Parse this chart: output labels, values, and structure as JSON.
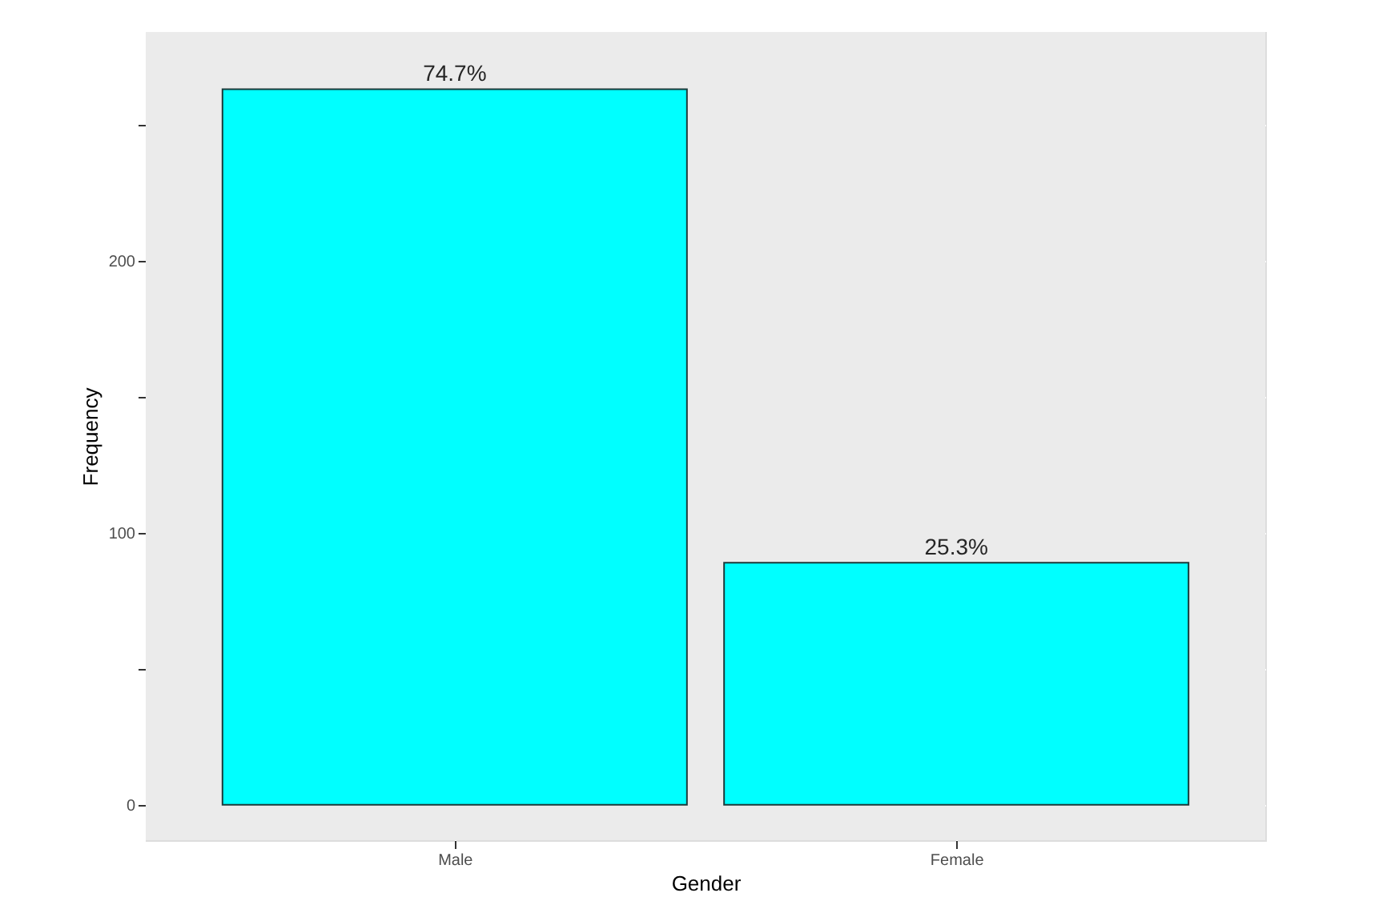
{
  "chart_data": {
    "type": "bar",
    "xlabel": "Gender",
    "ylabel": "Frequency",
    "categories": [
      "Male",
      "Female"
    ],
    "series": [
      {
        "color": "#00ffff",
        "values": [
          263,
          89
        ]
      }
    ],
    "annotations": [
      {
        "text": "74.7%",
        "x": "Male",
        "y": 263
      },
      {
        "text": "25.3%",
        "x": "Female",
        "y": 89
      }
    ],
    "ylim": [
      -13,
      284
    ],
    "yticks": [
      0,
      {
        "value": 50,
        "label": null
      },
      100,
      {
        "value": 150,
        "label": null
      },
      200,
      {
        "value": 250,
        "label": null
      }
    ],
    "grid": true
  }
}
